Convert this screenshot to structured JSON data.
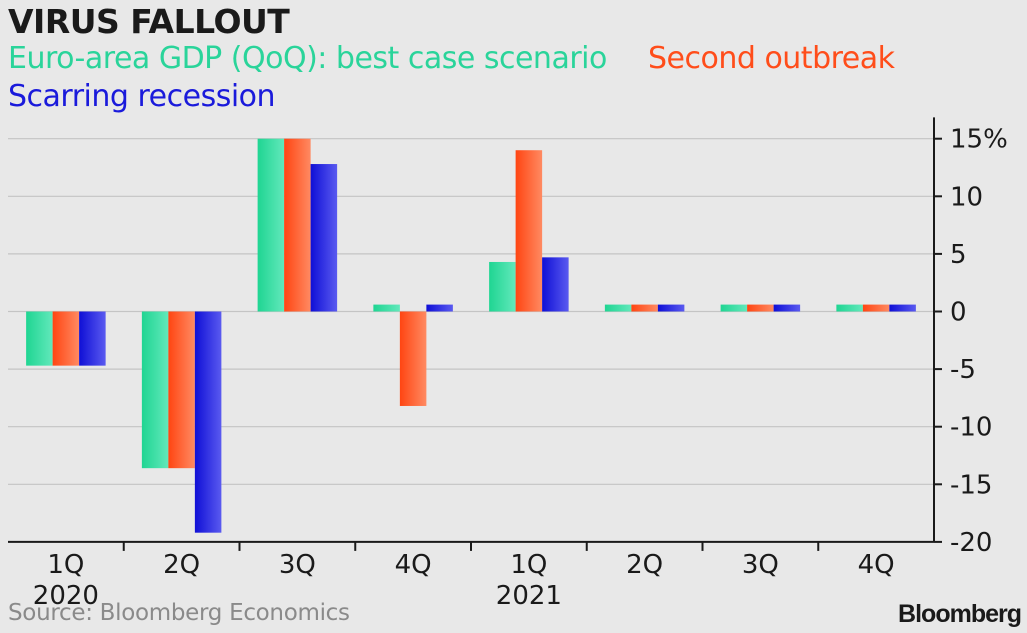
{
  "chart_data": {
    "type": "bar",
    "title": "VIRUS FALLOUT",
    "categories": [
      "1Q",
      "2Q",
      "3Q",
      "4Q",
      "1Q",
      "2Q",
      "3Q",
      "4Q"
    ],
    "year_labels": [
      "2020",
      "",
      "",
      "",
      "2021",
      "",
      "",
      ""
    ],
    "series": [
      {
        "name": "Euro-area GDP (QoQ): best case scenario",
        "values": [
          -4.7,
          -13.6,
          15,
          0.6,
          4.3,
          0.6,
          0.6,
          0.6
        ]
      },
      {
        "name": "Second outbreak",
        "values": [
          -4.7,
          -13.6,
          15,
          -8.2,
          14,
          0.6,
          0.6,
          0.6
        ]
      },
      {
        "name": "Scarring recession",
        "values": [
          -4.7,
          -19.2,
          12.8,
          0.6,
          4.7,
          0.6,
          0.6,
          0.6
        ]
      }
    ],
    "ylim": [
      -20,
      16.5
    ],
    "yticks": [
      -20,
      -15,
      -10,
      -5,
      0,
      5,
      10,
      15
    ],
    "ytick_labels": [
      "-20",
      "-15",
      "-10",
      "-5",
      "0",
      "5",
      "10",
      "15%"
    ],
    "xlabel": "",
    "ylabel": "",
    "grid": true,
    "axis_side": "right",
    "legend_placement": "top-left"
  },
  "colors": {
    "best": "#2ad49a",
    "second": "#ff4d1a",
    "scarring": "#1a1adb",
    "grid": "#c4c4c4",
    "axis": "#1a1a1a"
  },
  "source": "Source: Bloomberg Economics",
  "brand": "Bloomberg"
}
